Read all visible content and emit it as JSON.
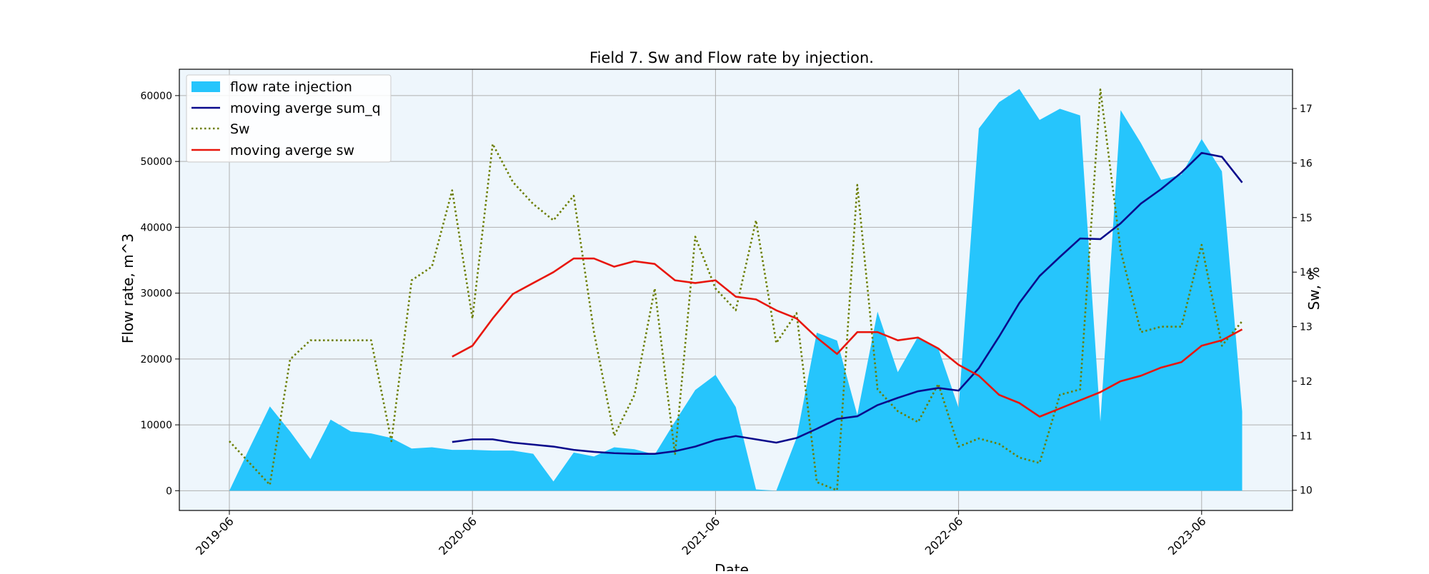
{
  "chart_data": {
    "type": "area",
    "title": "Field 7. Sw and Flow rate by injection.",
    "xlabel": "Date",
    "ylabel_left": "Flow rate, m^3",
    "ylabel_right": "Sw, %",
    "ylim_left": [
      -3000,
      64000
    ],
    "ylim_right": [
      9.63,
      17.72
    ],
    "grid": true,
    "legend_position": "upper-left",
    "x_tick_labels": [
      "2019-06",
      "2020-06",
      "2021-06",
      "2022-06",
      "2023-06"
    ],
    "left_tick_labels": [
      "0",
      "10000",
      "20000",
      "30000",
      "40000",
      "50000",
      "60000"
    ],
    "right_tick_labels": [
      "10",
      "11",
      "12",
      "13",
      "14",
      "15",
      "16",
      "17"
    ],
    "colors": {
      "plot_background": "#eef6fc",
      "area": "#26c5fc",
      "moving_sum_q": "#0a0a8c",
      "sw": "#6b7d00",
      "moving_sw": "#e8160c",
      "grid": "#b0b0b0"
    },
    "x_dates": [
      "2019-06",
      "2019-07",
      "2019-08",
      "2019-09",
      "2019-10",
      "2019-11",
      "2019-12",
      "2020-01",
      "2020-02",
      "2020-03",
      "2020-04",
      "2020-05",
      "2020-06",
      "2020-07",
      "2020-08",
      "2020-09",
      "2020-10",
      "2020-11",
      "2020-12",
      "2021-01",
      "2021-02",
      "2021-03",
      "2021-04",
      "2021-05",
      "2021-06",
      "2021-07",
      "2021-08",
      "2021-09",
      "2021-10",
      "2021-11",
      "2021-12",
      "2022-01",
      "2022-02",
      "2022-03",
      "2022-04",
      "2022-05",
      "2022-06",
      "2022-07",
      "2022-08",
      "2022-09",
      "2022-10",
      "2022-11",
      "2022-12",
      "2023-01",
      "2023-02",
      "2023-03",
      "2023-04",
      "2023-05",
      "2023-06",
      "2023-07",
      "2023-08"
    ],
    "series": [
      {
        "name": "flow rate injection",
        "kind": "area",
        "values": [
          0,
          6500,
          12800,
          9000,
          4800,
          10800,
          9000,
          8700,
          8000,
          6400,
          6600,
          6200,
          6200,
          6100,
          6100,
          5600,
          1400,
          5800,
          5200,
          6600,
          6300,
          5500,
          10500,
          15300,
          17600,
          12700,
          200,
          0,
          8000,
          24000,
          22800,
          11500,
          27200,
          18000,
          23400,
          21600,
          12600,
          55000,
          59000,
          61000,
          56300,
          58000,
          57000,
          10500,
          57800,
          52800,
          47200,
          48000,
          53400,
          48500,
          12000
        ]
      },
      {
        "name": "moving averge sum_q",
        "kind": "line",
        "values": [
          null,
          null,
          null,
          null,
          null,
          null,
          null,
          null,
          null,
          null,
          null,
          7400,
          7800,
          7800,
          7300,
          7000,
          6700,
          6200,
          5900,
          5700,
          5600,
          5600,
          6000,
          6700,
          7700,
          8300,
          7800,
          7300,
          8000,
          9400,
          10900,
          11300,
          13000,
          14100,
          15100,
          15600,
          15200,
          18600,
          23400,
          28500,
          32600,
          35500,
          38300,
          38200,
          40600,
          43600,
          45800,
          48300,
          51300,
          50700,
          46800
        ]
      },
      {
        "name": "Sw",
        "kind": "dotted",
        "values": [
          10.9,
          10.5,
          10.1,
          12.4,
          12.75,
          12.75,
          12.75,
          12.75,
          10.9,
          13.85,
          14.1,
          15.5,
          13.15,
          16.35,
          15.65,
          15.25,
          14.95,
          15.4,
          12.9,
          11.0,
          11.75,
          13.7,
          10.65,
          14.65,
          13.7,
          13.3,
          14.95,
          12.7,
          13.25,
          10.15,
          10.0,
          15.6,
          11.85,
          11.45,
          11.25,
          11.95,
          10.8,
          10.95,
          10.85,
          10.6,
          10.5,
          11.75,
          11.85,
          17.35,
          14.4,
          12.9,
          13.0,
          13.0,
          14.5,
          12.65,
          13.1
        ]
      },
      {
        "name": "moving averge sw",
        "kind": "line",
        "values": [
          null,
          null,
          null,
          null,
          null,
          null,
          null,
          null,
          null,
          null,
          null,
          12.45,
          12.65,
          13.15,
          13.6,
          13.8,
          14.0,
          14.25,
          14.25,
          14.1,
          14.2,
          14.15,
          13.85,
          13.8,
          13.85,
          13.55,
          13.5,
          13.3,
          13.15,
          12.8,
          12.5,
          12.9,
          12.9,
          12.75,
          12.8,
          12.6,
          12.3,
          12.1,
          11.75,
          11.6,
          11.35,
          11.5,
          11.65,
          11.8,
          12.0,
          12.1,
          12.25,
          12.35,
          12.65,
          12.75,
          12.95
        ]
      }
    ]
  }
}
